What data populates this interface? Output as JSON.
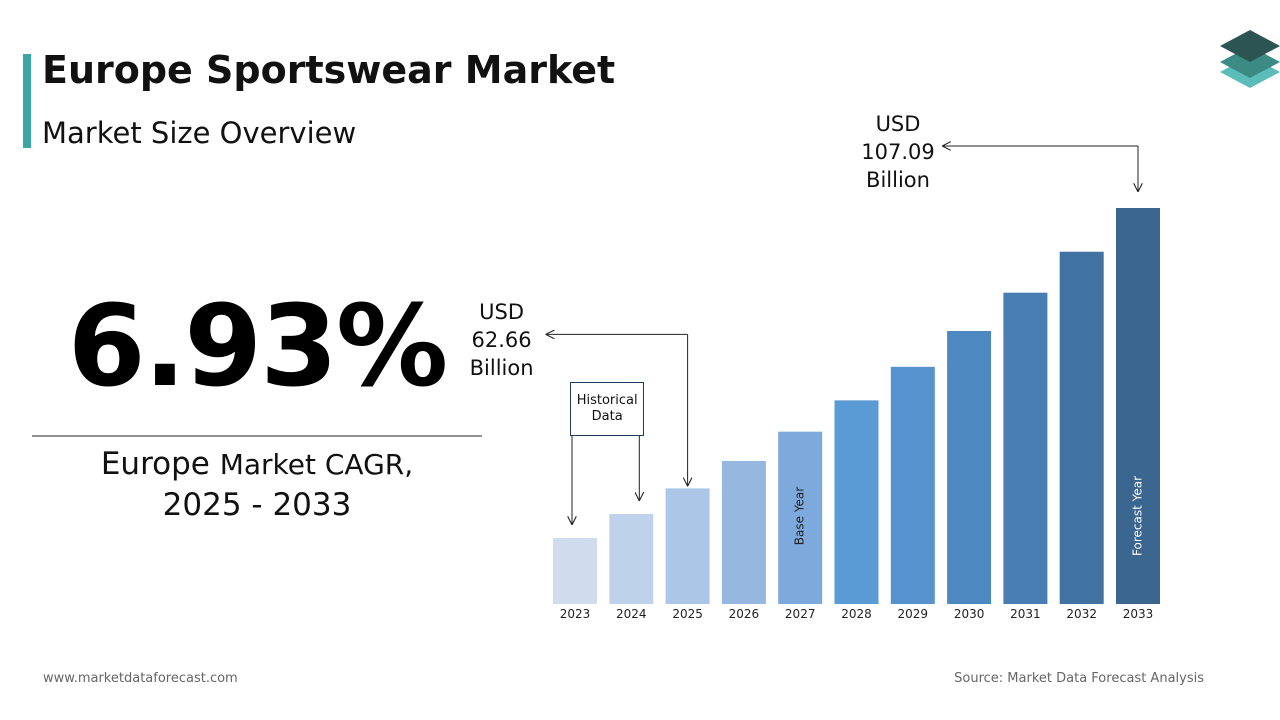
{
  "header": {
    "title": "Europe Sportswear Market",
    "subtitle": "Market Size Overview"
  },
  "cagr": {
    "value": "6.93%",
    "region": "Europe",
    "caption": "Market CAGR,",
    "period": "2025 - 2033"
  },
  "chart_data": {
    "type": "bar",
    "categories": [
      "2023",
      "2024",
      "2025",
      "2026",
      "2027",
      "2028",
      "2029",
      "2030",
      "2031",
      "2032",
      "2033"
    ],
    "values": [
      54.8,
      58.6,
      62.66,
      67.0,
      71.65,
      76.61,
      81.92,
      87.6,
      93.67,
      100.16,
      107.09
    ],
    "value_labels": [
      null,
      null,
      "USD 62.66 Billion",
      null,
      null,
      null,
      null,
      null,
      null,
      null,
      "USD 107.09 Billion"
    ],
    "colors": [
      "#cfdcee",
      "#bed2ea",
      "#abc6e6",
      "#96b8e0",
      "#7ea9dc",
      "#5b9bd5",
      "#5592ce",
      "#4d88c0",
      "#477db3",
      "#4272a2",
      "#3a6690"
    ],
    "bar_notes": [
      null,
      null,
      null,
      null,
      "Base Year",
      null,
      null,
      null,
      null,
      null,
      "Forecast Year"
    ],
    "annotation": "Historical Data"
  },
  "footer": {
    "website": "www.marketdataforecast.com",
    "source": "Source: Market Data Forecast Analysis"
  }
}
